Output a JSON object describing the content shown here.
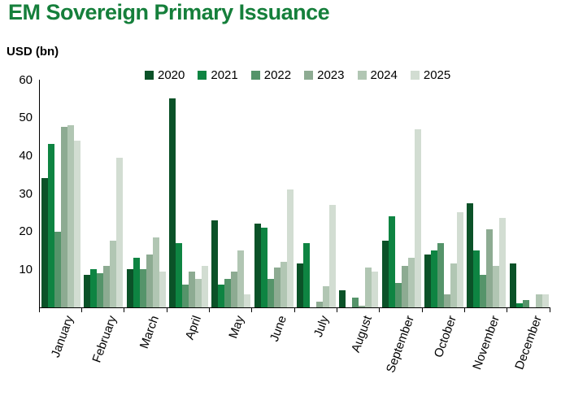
{
  "title": "EM Sovereign Primary Issuance",
  "title_color": "#157f3b",
  "unit_label": "USD (bn)",
  "chart_data": {
    "type": "bar",
    "title": "EM Sovereign Primary Issuance",
    "ylabel": "USD (bn)",
    "ylim": [
      0,
      60
    ],
    "yticks": [
      10,
      20,
      30,
      40,
      50,
      60
    ],
    "grid": false,
    "legend_position": "top",
    "categories": [
      "January",
      "February",
      "March",
      "April",
      "May",
      "June",
      "July",
      "August",
      "September",
      "October",
      "November",
      "December"
    ],
    "series": [
      {
        "name": "2020",
        "color": "#0b5228",
        "values": [
          34,
          8.5,
          10,
          55,
          23,
          22,
          11.5,
          4.5,
          17.5,
          14,
          27.5,
          11.5
        ]
      },
      {
        "name": "2021",
        "color": "#0e8442",
        "values": [
          43,
          10,
          13,
          17,
          6,
          21,
          17,
          0,
          24,
          15,
          15,
          1
        ]
      },
      {
        "name": "2022",
        "color": "#55946a",
        "values": [
          20,
          9,
          10,
          6,
          7.5,
          7.5,
          0,
          2.5,
          6.5,
          17,
          8.5,
          2
        ]
      },
      {
        "name": "2023",
        "color": "#8dab92",
        "values": [
          47.5,
          11,
          14,
          9.5,
          9.5,
          10.5,
          1.5,
          0.5,
          11,
          3.5,
          20.5,
          0
        ]
      },
      {
        "name": "2024",
        "color": "#b1c6b3",
        "values": [
          48,
          17.5,
          18.5,
          7.5,
          15,
          12,
          5.5,
          10.5,
          13,
          11.5,
          11,
          3.5
        ]
      },
      {
        "name": "2025",
        "color": "#d2ddd2",
        "values": [
          44,
          39.5,
          9.5,
          11,
          3.5,
          31,
          27,
          9.5,
          47,
          25,
          23.5,
          3.5
        ]
      }
    ]
  }
}
